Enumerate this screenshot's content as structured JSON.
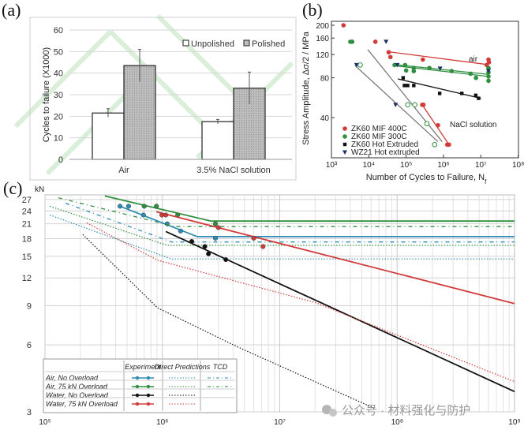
{
  "panel_labels": [
    "(a)",
    "(b)",
    "(c)"
  ],
  "watermark": "公众号 · 材料强化与防护",
  "colors": {
    "unpolished": "#ffffff",
    "polished": "#bdbdbd",
    "red": "#d23a3a",
    "green": "#2f8f3e",
    "black": "#111111",
    "blue": "#2e8bb3",
    "gray": "#7a7a7a"
  },
  "chart_data": [
    {
      "type": "bar",
      "panel": "(a)",
      "ylabel": "Cycles to failure (X1000)",
      "xlabel": "",
      "ylim": [
        0,
        60
      ],
      "yticks": [
        0,
        10,
        20,
        30,
        40,
        50,
        60
      ],
      "grid": true,
      "legend_position": "top-right",
      "categories": [
        "Air",
        "3.5% NaCl solution"
      ],
      "series": [
        {
          "name": "Unpolished",
          "values": [
            21.5,
            17.5
          ],
          "errors": [
            2,
            1
          ]
        },
        {
          "name": "Polished",
          "values": [
            43.5,
            33
          ],
          "errors": [
            7.5,
            7.5
          ]
        }
      ]
    },
    {
      "type": "scatter",
      "panel": "(b)",
      "xlabel": "Number of Cycles to Failure, N",
      "xlabel_sub": "f",
      "ylabel": "Stress Amplitude, Δσ/2 / MPa",
      "xscale": "log",
      "yscale": "log",
      "xlim": [
        1000,
        100000000
      ],
      "ylim": [
        20,
        215
      ],
      "xticks": [
        "10³",
        "10⁴",
        "10⁵",
        "10⁶",
        "10⁷",
        "10⁸"
      ],
      "yticks": [
        40,
        80,
        120,
        160,
        200
      ],
      "legend_position": "bottom-left",
      "annotations": [
        "air",
        "NaCl solution"
      ],
      "series": [
        {
          "name": "ZK60 MIF 400C",
          "marker": "circle",
          "color": "#d23a3a",
          "points": [
            [
              2100,
              200
            ],
            [
              15000,
              150
            ],
            [
              34000,
              125
            ],
            [
              38000,
              115
            ],
            [
              280000,
              110
            ],
            [
              14300000,
              100
            ],
            [
              16000000,
              110
            ],
            [
              16500000,
              105
            ],
            [
              270000,
              50
            ],
            [
              290000,
              50
            ],
            [
              710000,
              35
            ],
            [
              1260000,
              25
            ],
            [
              1400000,
              25
            ]
          ]
        },
        {
          "name": "ZK60 MIF 300C",
          "marker": "circle",
          "color": "#2f8f3e",
          "points": [
            [
              3200,
              150
            ],
            [
              3600,
              150
            ],
            [
              49000,
              100
            ],
            [
              94000,
              100
            ],
            [
              100000,
              91
            ],
            [
              160000,
              95
            ],
            [
              160000,
              90
            ],
            [
              420000,
              95
            ],
            [
              1650000,
              90
            ],
            [
              5300000,
              86
            ],
            [
              7400000,
              80
            ],
            [
              16000000,
              95
            ],
            [
              16000000,
              88
            ],
            [
              16000000,
              82
            ],
            [
              16000000,
              76
            ]
          ]
        },
        {
          "name": "ZK60 Hot Extruded",
          "marker": "square",
          "color": "#111111",
          "points": [
            [
              83000,
              80
            ],
            [
              90000,
              70
            ],
            [
              110000,
              70
            ],
            [
              160000,
              70
            ],
            [
              790000,
              61
            ],
            [
              3100000,
              61
            ],
            [
              7300000,
              59
            ],
            [
              8700000,
              56
            ]
          ]
        },
        {
          "name": "WZ21 Hot extruded",
          "marker": "triangle",
          "color": "#1f2f6b",
          "points": [
            [
              29000,
              150
            ],
            [
              58000,
              100
            ],
            [
              810000,
              94
            ],
            [
              16000000,
              90
            ],
            [
              4700,
              100
            ],
            [
              52000,
              50
            ]
          ]
        },
        {
          "name": "",
          "marker": "open-circle",
          "color": "#2f8f3e",
          "points": [
            [
              5900,
              100
            ],
            [
              110000,
              50
            ],
            [
              170000,
              50
            ],
            [
              360000,
              36
            ],
            [
              580000,
              25
            ]
          ]
        }
      ],
      "lines": [
        {
          "color": "#d23a3a",
          "points": [
            [
              34000,
              126
            ],
            [
              14300000,
              101
            ]
          ]
        },
        {
          "color": "#2f8f3e",
          "points": [
            [
              45000,
              101
            ],
            [
              16000000,
              85
            ]
          ]
        },
        {
          "color": "#2f8f3e",
          "points": [
            [
              45000,
              99
            ],
            [
              16000000,
              82
            ]
          ]
        },
        {
          "color": "#111111",
          "points": [
            [
              60000,
              78.5
            ],
            [
              10000000,
              56
            ]
          ]
        },
        {
          "color": "#7a7a7a",
          "points": [
            [
              4300,
              99
            ],
            [
              710000,
              26.3
            ]
          ]
        },
        {
          "color": "#7a7a7a",
          "points": [
            [
              9400,
              131
            ],
            [
              920000,
              26.3
            ]
          ]
        },
        {
          "color": "#d23a3a",
          "points": [
            [
              270000,
              50
            ],
            [
              1400000,
              25
            ]
          ]
        }
      ]
    },
    {
      "type": "line",
      "panel": "(c)",
      "yunit": "kN",
      "xscale": "log",
      "yscale": "log",
      "xlim": [
        100000,
        1000000000
      ],
      "ylim": [
        3,
        27
      ],
      "xticks": [
        "10⁵",
        "10⁶",
        "10⁷",
        "10⁸",
        "10⁹"
      ],
      "yticks": [
        3,
        6,
        9,
        12,
        15,
        18,
        21,
        24,
        27
      ],
      "grid": true,
      "legend_position": "bottom-left",
      "legend_columns": [
        "Experiment",
        "Direct Predictions",
        "TCD"
      ],
      "series": [
        {
          "name": "Air, No Overload",
          "color": "#2e8bb3",
          "experiment_points": [
            [
              436000,
              25.2
            ],
            [
              516000,
              25.2
            ],
            [
              690000,
              23.0
            ],
            [
              1100000,
              21.0
            ],
            [
              1430000,
              19.5
            ],
            [
              2830000,
              18.1
            ]
          ],
          "experiment_fit": [
            [
              420000,
              25.4
            ],
            [
              1980000,
              18.4
            ],
            [
              1000000000,
              18.4
            ]
          ],
          "direct_prediction": [
            [
              110000,
              23.0
            ],
            [
              1190000,
              14.6
            ],
            [
              1000000000,
              14.6
            ]
          ],
          "tcd": [
            [
              150000,
              26.0
            ],
            [
              1200000,
              17.4
            ],
            [
              1000000000,
              17.4
            ]
          ]
        },
        {
          "name": "Air, 75 kN Overload",
          "color": "#2f8f3e",
          "experiment_points": [
            [
              700000,
              25.2
            ],
            [
              890000,
              25.2
            ],
            [
              1350000,
              23.0
            ],
            [
              2830000,
              21.0
            ]
          ],
          "experiment_fit": [
            [
              324000,
              28.0
            ],
            [
              2600000,
              21.6
            ],
            [
              1000000000,
              21.6
            ]
          ],
          "direct_prediction": [
            [
              110000,
              25.2
            ],
            [
              1100000,
              16.8
            ],
            [
              1000000000,
              16.8
            ]
          ],
          "tcd": [
            [
              130000,
              27.5
            ],
            [
              1300000,
              20.4
            ],
            [
              1000000000,
              20.4
            ]
          ]
        },
        {
          "name": "Water, No Overload",
          "color": "#111111",
          "experiment_points": [
            [
              1780000,
              17.5
            ],
            [
              2300000,
              16.6
            ],
            [
              2470000,
              15.4
            ],
            [
              3470000,
              14.5
            ]
          ],
          "experiment_fit": [
            [
              1070000,
              19.4
            ],
            [
              1000000000,
              3.7
            ]
          ],
          "direct_prediction": [
            [
              210000,
              18.8
            ],
            [
              910000,
              8.8
            ],
            [
              4300000,
              5.9
            ],
            [
              65000000,
              3.1
            ]
          ]
        },
        {
          "name": "Water, 75 kN Overload",
          "color": "#d23a3a",
          "experiment_points": [
            [
              990000,
              23.0
            ],
            [
              1070000,
              23.0
            ],
            [
              3000000,
              20.2
            ],
            [
              6000000,
              18.1
            ],
            [
              7200000,
              16.6
            ]
          ],
          "experiment_fit": [
            [
              890000,
              23.8
            ],
            [
              1000000000,
              9.2
            ]
          ],
          "direct_prediction": [
            [
              227000,
              21.2
            ],
            [
              915000,
              14.4
            ],
            [
              20000000,
              9.3
            ],
            [
              1000000000,
              4.1
            ]
          ]
        }
      ]
    }
  ]
}
